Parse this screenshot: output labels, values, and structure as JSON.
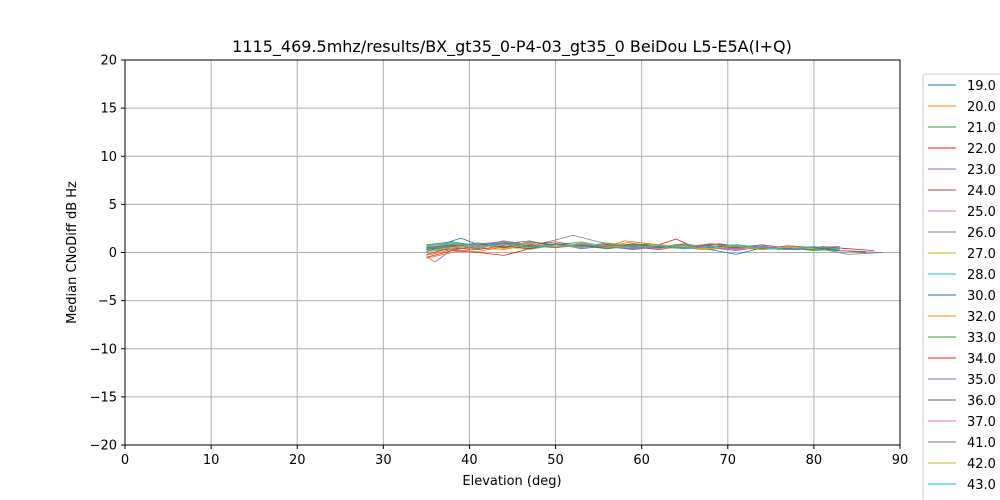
{
  "chart_data": {
    "type": "line",
    "title": "1115_469.5mhz/results/BX_gt35_0-P4-03_gt35_0 BeiDou L5-E5A(I+Q)",
    "xlabel": "Elevation (deg)",
    "ylabel": "Median CNoDiff dB Hz",
    "xlim": [
      0,
      90
    ],
    "ylim": [
      -20,
      20
    ],
    "xticks": [
      0,
      10,
      20,
      30,
      40,
      50,
      60,
      70,
      80,
      90
    ],
    "yticks": [
      -20,
      -15,
      -10,
      -5,
      0,
      5,
      10,
      15,
      20
    ],
    "ytick_labels": [
      "−20",
      "−15",
      "−10",
      "−5",
      "0",
      "5",
      "10",
      "15",
      "20"
    ],
    "grid": true,
    "legend_position": "right, outside plot",
    "series": [
      {
        "name": "19.0",
        "color": "#1f77b4",
        "x": [
          35,
          38,
          41,
          44,
          47,
          50,
          53,
          56,
          59,
          62,
          65,
          68,
          71,
          74,
          77,
          80,
          83,
          86
        ],
        "y": [
          0.3,
          0.9,
          0.6,
          1.0,
          0.7,
          0.8,
          0.5,
          0.9,
          0.6,
          0.4,
          0.7,
          0.5,
          0.3,
          0.6,
          0.4,
          0.5,
          0.2,
          0.1
        ]
      },
      {
        "name": "20.0",
        "color": "#ff7f0e",
        "x": [
          35,
          38,
          41,
          44,
          47,
          50,
          53,
          56,
          59,
          62,
          65,
          68,
          71,
          74,
          77,
          80
        ],
        "y": [
          -0.6,
          0.0,
          0.5,
          0.3,
          0.8,
          0.6,
          1.0,
          0.7,
          1.1,
          0.8,
          0.5,
          0.3,
          0.7,
          0.4,
          0.6,
          0.3
        ]
      },
      {
        "name": "21.0",
        "color": "#2ca02c",
        "x": [
          35,
          38,
          41,
          44,
          47,
          50,
          53,
          56,
          59,
          62,
          65,
          68,
          71,
          74,
          77,
          80,
          83
        ],
        "y": [
          0.8,
          1.1,
          0.7,
          0.9,
          1.2,
          0.6,
          0.8,
          0.5,
          0.9,
          0.7,
          0.4,
          0.6,
          0.8,
          0.3,
          0.5,
          0.2,
          0.4
        ]
      },
      {
        "name": "22.0",
        "color": "#d62728",
        "x": [
          35,
          38,
          41,
          44,
          47,
          50,
          53,
          56,
          59,
          62,
          64,
          66,
          69,
          72,
          75,
          78,
          81,
          84,
          87
        ],
        "y": [
          -0.5,
          0.2,
          0.0,
          -0.3,
          0.4,
          0.9,
          0.6,
          1.0,
          0.5,
          0.8,
          1.4,
          0.6,
          0.9,
          0.5,
          0.7,
          0.3,
          0.6,
          0.4,
          0.2
        ]
      },
      {
        "name": "23.0",
        "color": "#9467bd",
        "x": [
          35,
          38,
          41,
          44,
          47,
          50,
          53,
          56,
          59,
          62,
          65,
          68,
          71,
          74,
          77,
          80
        ],
        "y": [
          0.5,
          0.2,
          0.8,
          1.0,
          0.6,
          0.9,
          0.4,
          0.7,
          0.3,
          0.6,
          0.8,
          0.5,
          0.2,
          0.6,
          0.4,
          0.3
        ]
      },
      {
        "name": "24.0",
        "color": "#8c564b",
        "x": [
          35,
          38,
          41,
          44,
          47,
          50,
          53,
          56,
          59,
          62,
          65,
          68,
          71,
          74,
          77,
          80,
          83,
          86
        ],
        "y": [
          0.1,
          0.4,
          0.9,
          0.6,
          1.1,
          0.8,
          0.5,
          0.9,
          0.6,
          0.3,
          0.7,
          0.4,
          0.8,
          0.5,
          0.3,
          0.6,
          0.2,
          0.0
        ]
      },
      {
        "name": "25.0",
        "color": "#e377c2",
        "x": [
          35,
          38,
          41,
          44,
          47,
          50,
          53,
          56,
          59,
          62,
          65,
          68,
          71,
          74,
          77,
          80
        ],
        "y": [
          0.6,
          0.3,
          0.7,
          1.2,
          0.8,
          0.5,
          0.9,
          0.6,
          0.4,
          0.8,
          0.5,
          0.7,
          0.3,
          0.6,
          0.4,
          0.5
        ]
      },
      {
        "name": "26.0",
        "color": "#7f7f7f",
        "x": [
          35,
          38,
          41,
          44,
          47,
          50,
          52,
          55,
          58,
          61,
          64,
          67,
          70,
          73,
          76,
          79,
          82,
          85,
          88
        ],
        "y": [
          0.4,
          0.8,
          0.5,
          0.9,
          0.7,
          1.3,
          1.8,
          1.1,
          0.7,
          0.9,
          0.5,
          0.8,
          0.4,
          0.7,
          0.3,
          0.5,
          0.2,
          0.1,
          0.0
        ]
      },
      {
        "name": "27.0",
        "color": "#bcbd22",
        "x": [
          35,
          38,
          41,
          44,
          47,
          50,
          53,
          56,
          59,
          62,
          65,
          68,
          71,
          74,
          77,
          80
        ],
        "y": [
          0.7,
          0.4,
          0.9,
          0.6,
          0.3,
          0.8,
          0.5,
          1.0,
          0.7,
          0.4,
          0.6,
          0.9,
          0.5,
          0.3,
          0.6,
          0.4
        ]
      },
      {
        "name": "28.0",
        "color": "#17becf",
        "x": [
          35,
          38,
          41,
          44,
          47,
          50,
          53,
          56,
          59,
          62,
          65,
          68,
          71,
          74,
          77,
          80,
          83
        ],
        "y": [
          0.2,
          0.6,
          1.0,
          0.7,
          0.4,
          0.8,
          1.1,
          0.6,
          0.9,
          0.5,
          0.7,
          0.4,
          0.8,
          0.5,
          0.3,
          0.6,
          0.3
        ]
      },
      {
        "name": "30.0",
        "color": "#1f77b4",
        "x": [
          35,
          37,
          39,
          41,
          44,
          47,
          50,
          53,
          56,
          59,
          62,
          65,
          68,
          71,
          74,
          77,
          80
        ],
        "y": [
          0.0,
          0.9,
          1.5,
          0.8,
          0.5,
          0.9,
          0.6,
          0.8,
          0.4,
          0.7,
          0.5,
          0.8,
          0.3,
          -0.2,
          0.5,
          0.3,
          0.4
        ]
      },
      {
        "name": "32.0",
        "color": "#ff7f0e",
        "x": [
          35,
          38,
          41,
          44,
          47,
          50,
          53,
          56,
          58,
          61,
          64,
          67,
          70,
          73,
          76,
          79
        ],
        "y": [
          -0.3,
          0.3,
          0.1,
          0.6,
          0.9,
          0.5,
          0.8,
          0.6,
          1.2,
          0.9,
          0.6,
          0.3,
          0.7,
          0.5,
          0.4,
          0.6
        ]
      },
      {
        "name": "33.0",
        "color": "#2ca02c",
        "x": [
          35,
          38,
          41,
          44,
          47,
          50,
          53,
          56,
          59,
          62,
          65,
          68,
          71,
          74,
          77,
          80,
          83
        ],
        "y": [
          0.5,
          0.8,
          0.4,
          1.0,
          0.6,
          0.9,
          0.7,
          0.4,
          0.8,
          0.6,
          0.9,
          0.5,
          0.7,
          0.4,
          0.6,
          0.3,
          0.5
        ]
      },
      {
        "name": "34.0",
        "color": "#d62728",
        "x": [
          35,
          38,
          41,
          44,
          47,
          50,
          53,
          56,
          59,
          62,
          65,
          68,
          71,
          74,
          77,
          80,
          83
        ],
        "y": [
          -0.2,
          0.5,
          0.3,
          0.7,
          0.4,
          0.9,
          0.6,
          0.8,
          0.5,
          0.7,
          0.4,
          0.9,
          0.6,
          0.3,
          0.7,
          0.5,
          0.6
        ]
      },
      {
        "name": "35.0",
        "color": "#9467bd",
        "x": [
          35,
          36,
          38,
          41,
          44,
          47,
          50,
          53,
          56,
          59,
          62,
          65,
          68,
          71,
          74,
          77,
          80
        ],
        "y": [
          -0.4,
          -1.0,
          0.3,
          0.7,
          1.2,
          0.8,
          0.5,
          0.9,
          0.6,
          0.4,
          0.8,
          0.5,
          0.7,
          0.4,
          0.6,
          0.3,
          0.5
        ]
      },
      {
        "name": "36.0",
        "color": "#8c564b",
        "x": [
          35,
          38,
          41,
          44,
          47,
          50,
          53,
          56,
          59,
          62,
          65,
          68,
          71,
          74,
          77,
          80
        ],
        "y": [
          0.3,
          0.7,
          0.9,
          0.5,
          0.8,
          1.1,
          0.7,
          0.5,
          0.9,
          0.6,
          0.4,
          0.7,
          0.5,
          0.8,
          0.4,
          0.6
        ]
      },
      {
        "name": "37.0",
        "color": "#e377c2",
        "x": [
          35,
          38,
          41,
          44,
          47,
          50,
          53,
          56,
          59,
          62,
          65,
          68,
          71,
          74,
          77,
          80
        ],
        "y": [
          0.6,
          0.9,
          0.5,
          0.8,
          1.0,
          0.6,
          0.9,
          0.5,
          0.7,
          0.4,
          0.8,
          0.6,
          0.3,
          0.7,
          0.5,
          0.4
        ]
      },
      {
        "name": "41.0",
        "color": "#7f7f7f",
        "x": [
          35,
          38,
          41,
          44,
          47,
          50,
          53,
          56,
          59,
          62,
          65,
          68,
          71,
          74,
          77,
          80,
          84,
          88
        ],
        "y": [
          0.4,
          0.6,
          0.9,
          1.1,
          0.7,
          0.5,
          0.8,
          0.6,
          0.3,
          0.7,
          0.5,
          0.9,
          0.6,
          0.4,
          0.7,
          0.5,
          -0.2,
          0.0
        ]
      },
      {
        "name": "42.0",
        "color": "#bcbd22",
        "x": [
          35,
          38,
          41,
          44,
          47,
          50,
          53,
          56,
          59,
          62,
          65,
          68,
          71,
          74,
          77,
          80
        ],
        "y": [
          0.1,
          0.5,
          0.8,
          0.4,
          0.9,
          0.6,
          1.0,
          0.7,
          0.5,
          0.8,
          0.6,
          0.4,
          0.7,
          0.3,
          0.6,
          0.4
        ]
      },
      {
        "name": "43.0",
        "color": "#17becf",
        "x": [
          35,
          38,
          41,
          44,
          47,
          50,
          53,
          56,
          59,
          62,
          65,
          68,
          71,
          74,
          77,
          80,
          83
        ],
        "y": [
          0.7,
          1.0,
          0.6,
          0.9,
          0.5,
          0.8,
          0.6,
          0.9,
          0.5,
          0.7,
          0.4,
          0.6,
          0.8,
          0.5,
          0.3,
          0.6,
          0.4
        ]
      }
    ]
  }
}
